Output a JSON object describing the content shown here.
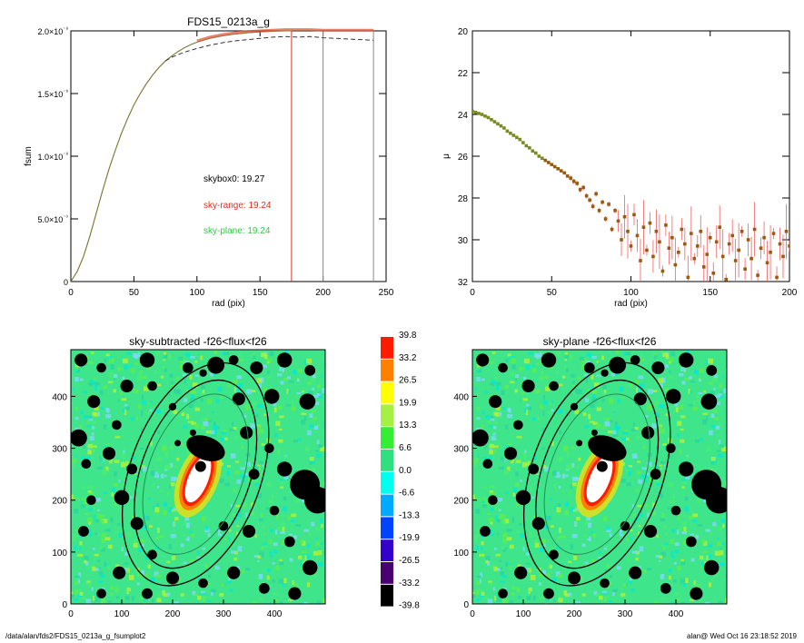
{
  "chart_data": [
    {
      "type": "line",
      "title": "FDS15_0213a_g",
      "xlabel": "rad (pix)",
      "ylabel": "fsum",
      "xlim": [
        0,
        250
      ],
      "ylim": [
        0,
        2e-08
      ],
      "xticks": [
        "0",
        "50",
        "100",
        "150",
        "200",
        "250"
      ],
      "yticks": [
        "0",
        "5.0×10⁻⁹",
        "1.0×10⁻⁸",
        "1.5×10⁻⁸",
        "2.0×10⁻⁸"
      ],
      "series": [
        {
          "style": "solid",
          "color": "#555555",
          "x": [
            0,
            5,
            10,
            15,
            20,
            25,
            30,
            35,
            40,
            45,
            50,
            55,
            60,
            65,
            70,
            75,
            80,
            85,
            90,
            95,
            100,
            110,
            120,
            130,
            140,
            150,
            160,
            170,
            175
          ],
          "y": [
            0,
            8e-10,
            2e-09,
            3.6e-09,
            5.4e-09,
            7.2e-09,
            8.9e-09,
            1.04e-08,
            1.18e-08,
            1.3e-08,
            1.41e-08,
            1.5e-08,
            1.58e-08,
            1.65e-08,
            1.71e-08,
            1.76e-08,
            1.8e-08,
            1.835e-08,
            1.865e-08,
            1.89e-08,
            1.91e-08,
            1.94e-08,
            1.96e-08,
            1.975e-08,
            1.985e-08,
            1.992e-08,
            1.997e-08,
            2e-08,
            2e-08
          ]
        },
        {
          "style": "dashed",
          "color": "#333333",
          "x": [
            75,
            80,
            90,
            100,
            110,
            120,
            130,
            140,
            150,
            160,
            170,
            180,
            190,
            200,
            210,
            220,
            230,
            240
          ],
          "y": [
            1.76e-08,
            1.79e-08,
            1.83e-08,
            1.86e-08,
            1.885e-08,
            1.905e-08,
            1.92e-08,
            1.93e-08,
            1.94e-08,
            1.95e-08,
            1.955e-08,
            1.95e-08,
            1.955e-08,
            1.945e-08,
            1.94e-08,
            1.935e-08,
            1.93e-08,
            1.925e-08
          ]
        },
        {
          "style": "band",
          "color": "#e05a3a",
          "x": [
            100,
            110,
            120,
            130,
            140,
            150,
            160,
            170,
            175,
            180,
            190,
            200,
            210,
            220,
            230,
            240
          ],
          "y": [
            1.92e-08,
            1.95e-08,
            1.97e-08,
            1.985e-08,
            1.995e-08,
            2e-08,
            2.005e-08,
            2.01e-08,
            2.01e-08,
            2.01e-08,
            2.01e-08,
            2.005e-08,
            2.005e-08,
            2.005e-08,
            2.005e-08,
            2.005e-08
          ]
        }
      ],
      "vlines": [
        {
          "x": 175,
          "color": "#e03020"
        },
        {
          "x": 200,
          "color": "#888888"
        },
        {
          "x": 240,
          "color": "#888888"
        }
      ],
      "annotations": [
        {
          "text": "skybox0: 19.27",
          "color": "#000000"
        },
        {
          "text": "sky-range: 19.24",
          "color": "#e03020"
        },
        {
          "text": "sky-plane: 19.24",
          "color": "#2ecc40"
        }
      ]
    },
    {
      "type": "scatter",
      "xlabel": "rad (pix)",
      "ylabel": "μ",
      "xlim": [
        0,
        200
      ],
      "ylim": [
        32,
        20
      ],
      "xticks": [
        "0",
        "50",
        "100",
        "150",
        "200"
      ],
      "yticks": [
        "20",
        "22",
        "24",
        "26",
        "28",
        "30",
        "32"
      ],
      "profile": {
        "x": [
          0,
          2,
          4,
          6,
          8,
          10,
          12,
          14,
          16,
          18,
          20,
          22,
          24,
          26,
          28,
          30,
          32,
          34,
          36,
          38,
          40,
          42,
          44,
          46,
          48,
          50,
          52,
          54,
          56,
          58,
          60,
          62,
          64,
          66,
          68,
          70,
          72,
          74,
          76,
          78,
          80,
          82,
          84,
          86,
          88,
          90,
          92,
          94,
          96,
          98,
          100,
          102,
          104,
          106,
          108,
          110,
          112,
          114,
          116,
          118,
          120,
          122,
          124,
          126,
          128,
          130,
          132,
          134,
          136,
          138,
          140,
          142,
          144,
          146,
          148,
          150,
          152,
          154,
          156,
          158,
          160,
          162,
          164,
          166,
          168,
          170,
          172,
          174,
          176,
          178,
          180,
          182,
          184,
          186,
          188,
          190,
          192,
          194,
          196,
          198,
          200
        ],
        "y": [
          23.85,
          23.9,
          23.95,
          24.0,
          24.08,
          24.15,
          24.25,
          24.35,
          24.45,
          24.55,
          24.65,
          24.8,
          24.9,
          25.0,
          25.1,
          25.2,
          25.35,
          25.5,
          25.6,
          25.75,
          25.85,
          26.0,
          26.1,
          26.2,
          26.3,
          26.4,
          26.5,
          26.6,
          26.7,
          26.8,
          26.95,
          27.05,
          27.2,
          27.3,
          27.6,
          27.5,
          27.9,
          28.1,
          28.4,
          27.8,
          28.6,
          28.2,
          29.0,
          28.3,
          29.5,
          28.6,
          29.1,
          30.0,
          28.9,
          29.6,
          30.3,
          28.8,
          29.8,
          31.0,
          29.4,
          30.5,
          29.2,
          30.8,
          29.6,
          30.1,
          31.5,
          29.3,
          30.4,
          29.9,
          31.2,
          30.6,
          29.5,
          30.2,
          31.8,
          29.7,
          30.9,
          30.3,
          29.6,
          31.3,
          30.7,
          29.9,
          31.6,
          30.1,
          29.4,
          30.8,
          31.9,
          30.2,
          29.8,
          31.0,
          30.5,
          29.6,
          31.4,
          30.0,
          30.9,
          29.5,
          31.7,
          30.4,
          29.9,
          31.1,
          30.6,
          29.7,
          31.8,
          30.2,
          30.8,
          29.6,
          30.3
        ]
      }
    },
    {
      "type": "heatmap",
      "title": "sky-subtracted -f26<flux<f26",
      "xlim": [
        0,
        500
      ],
      "ylim": [
        0,
        490
      ],
      "xticks": [
        "0",
        "100",
        "200",
        "300",
        "400"
      ],
      "yticks": [
        "0",
        "100",
        "200",
        "300",
        "400"
      ]
    },
    {
      "type": "heatmap",
      "title": "sky-plane -f26<flux<f26",
      "xlim": [
        0,
        500
      ],
      "ylim": [
        0,
        490
      ],
      "xticks": [
        "0",
        "100",
        "200",
        "300",
        "400"
      ],
      "yticks": [
        "0",
        "100",
        "200",
        "300",
        "400"
      ]
    }
  ],
  "colorbar": {
    "labels": [
      "39.8",
      "33.2",
      "26.5",
      "19.9",
      "13.3",
      "6.6",
      "0.0",
      "-6.6",
      "-13.3",
      "-19.9",
      "-26.5",
      "-33.2",
      "-39.8"
    ],
    "colors": [
      "#ff1a00",
      "#ff7f00",
      "#ffff00",
      "#a6f046",
      "#33ee33",
      "#2fe080",
      "#00ffee",
      "#00aaff",
      "#0044ff",
      "#3300cc",
      "#4a0070",
      "#000000"
    ]
  },
  "footer": {
    "left": "/data/alan/fds2/FDS15_0213a_g_fsumplot2",
    "right": "alan@  Wed Oct 16 23:18:52 2019"
  }
}
